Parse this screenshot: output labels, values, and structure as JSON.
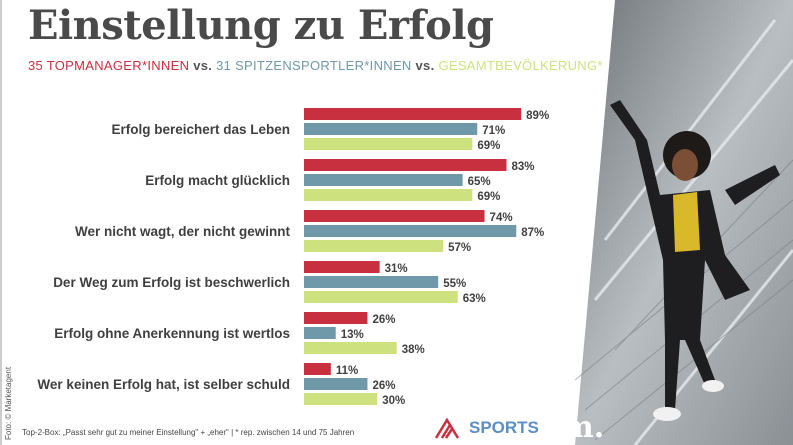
{
  "title": "Einstellung zu Erfolg",
  "subtitle": {
    "group1": "35 TOPMANAGER*INNEN",
    "vs1": "vs.",
    "group2": "31 SPITZENSPORTLER*INNEN",
    "vs2": "vs.",
    "group3": "GESAMTBEVÖLKERUNG*"
  },
  "footnote": "Top-2-Box: „Passt sehr gut zu meiner Einstellung\" + „eher\" | * rep. zwischen 14 und 75 Jahren",
  "credit": "Foto: © Marketagent",
  "logos": {
    "sports": "SPORTS",
    "m": "m."
  },
  "colors": {
    "red": "#c8303f",
    "blue": "#6f98a8",
    "green": "#cde27f",
    "title": "#4a4a4a"
  },
  "chart_data": {
    "type": "bar",
    "orientation": "horizontal",
    "title": "Einstellung zu Erfolg",
    "categories": [
      "Erfolg bereichert das Leben",
      "Erfolg macht glücklich",
      "Wer nicht wagt, der nicht gewinnt",
      "Der Weg zum Erfolg ist beschwerlich",
      "Erfolg ohne Anerkennung ist wertlos",
      "Wer keinen Erfolg hat, ist selber schuld"
    ],
    "series": [
      {
        "name": "35 Topmanager*innen",
        "color": "#c8303f",
        "values": [
          89,
          83,
          74,
          31,
          26,
          11
        ]
      },
      {
        "name": "31 Spitzensportler*innen",
        "color": "#6f98a8",
        "values": [
          71,
          65,
          87,
          55,
          13,
          26
        ]
      },
      {
        "name": "Gesamtbevölkerung*",
        "color": "#cde27f",
        "values": [
          69,
          69,
          57,
          63,
          38,
          30
        ]
      }
    ],
    "unit": "%",
    "xlim": [
      0,
      100
    ],
    "grid": false
  }
}
